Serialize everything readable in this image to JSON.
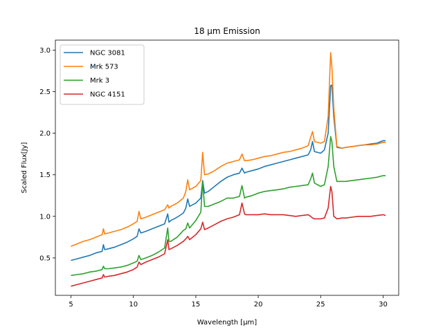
{
  "chart_data": {
    "type": "line",
    "title": "18 μm Emission",
    "xlabel": "Wavelength [μm]",
    "ylabel": "Scaled Flux[Jy]",
    "xlim": [
      3.75,
      31.25
    ],
    "ylim": [
      0.05,
      3.12
    ],
    "xticks": [
      5,
      10,
      15,
      20,
      25,
      30
    ],
    "yticks": [
      0.5,
      1.0,
      1.5,
      2.0,
      2.5,
      3.0
    ],
    "ytick_labels": [
      "0.5",
      "1.0",
      "1.5",
      "2.0",
      "2.5",
      "3.0"
    ],
    "grid": false,
    "legend_position": "top-left",
    "series": [
      {
        "name": "NGC 3081",
        "color": "#1f77b4",
        "x": [
          5.0,
          5.5,
          6.0,
          6.5,
          7.0,
          7.5,
          7.6,
          7.7,
          8.0,
          8.5,
          9.0,
          9.5,
          10.0,
          10.3,
          10.45,
          10.6,
          11.0,
          11.5,
          12.0,
          12.5,
          12.75,
          12.85,
          13.0,
          13.5,
          14.0,
          14.2,
          14.35,
          14.5,
          15.0,
          15.4,
          15.55,
          15.7,
          16.0,
          16.5,
          17.0,
          17.5,
          18.0,
          18.5,
          18.7,
          18.9,
          19.0,
          19.5,
          20.0,
          20.5,
          21.0,
          21.5,
          22.0,
          22.5,
          23.0,
          23.5,
          24.0,
          24.2,
          24.35,
          24.5,
          25.0,
          25.3,
          25.6,
          25.8,
          25.9,
          26.05,
          26.3,
          26.7,
          27.0,
          27.5,
          28.0,
          28.5,
          29.0,
          29.5,
          30.0,
          30.2
        ],
        "y": [
          0.47,
          0.49,
          0.51,
          0.53,
          0.56,
          0.58,
          0.66,
          0.6,
          0.61,
          0.63,
          0.66,
          0.69,
          0.73,
          0.76,
          0.85,
          0.8,
          0.82,
          0.85,
          0.88,
          0.91,
          1.03,
          0.93,
          0.95,
          0.99,
          1.04,
          1.1,
          1.21,
          1.12,
          1.16,
          1.22,
          1.43,
          1.28,
          1.3,
          1.36,
          1.42,
          1.47,
          1.5,
          1.52,
          1.58,
          1.52,
          1.53,
          1.55,
          1.57,
          1.6,
          1.62,
          1.64,
          1.66,
          1.68,
          1.7,
          1.72,
          1.74,
          1.8,
          1.9,
          1.78,
          1.76,
          1.8,
          2.0,
          2.57,
          2.58,
          2.2,
          1.83,
          1.82,
          1.83,
          1.84,
          1.85,
          1.86,
          1.87,
          1.88,
          1.91,
          1.91
        ]
      },
      {
        "name": "Mrk 573",
        "color": "#ff7f0e",
        "x": [
          5.0,
          5.5,
          6.0,
          6.5,
          7.0,
          7.5,
          7.6,
          7.7,
          8.0,
          8.5,
          9.0,
          9.5,
          10.0,
          10.3,
          10.45,
          10.6,
          11.0,
          11.5,
          12.0,
          12.5,
          12.75,
          12.85,
          13.0,
          13.5,
          14.0,
          14.2,
          14.35,
          14.5,
          15.0,
          15.4,
          15.55,
          15.7,
          16.0,
          16.5,
          17.0,
          17.5,
          18.0,
          18.5,
          18.7,
          18.9,
          19.0,
          19.5,
          20.0,
          20.5,
          21.0,
          21.5,
          22.0,
          22.5,
          23.0,
          23.5,
          24.0,
          24.2,
          24.35,
          24.5,
          25.0,
          25.3,
          25.6,
          25.8,
          25.9,
          26.05,
          26.3,
          26.7,
          27.0,
          27.5,
          28.0,
          28.5,
          29.0,
          29.5,
          30.0,
          30.2
        ],
        "y": [
          0.64,
          0.67,
          0.7,
          0.72,
          0.75,
          0.78,
          0.85,
          0.79,
          0.8,
          0.82,
          0.84,
          0.87,
          0.91,
          0.94,
          1.06,
          0.97,
          0.99,
          1.02,
          1.05,
          1.08,
          1.14,
          1.1,
          1.12,
          1.16,
          1.22,
          1.3,
          1.44,
          1.32,
          1.36,
          1.43,
          1.77,
          1.5,
          1.51,
          1.55,
          1.6,
          1.64,
          1.66,
          1.68,
          1.75,
          1.67,
          1.67,
          1.68,
          1.7,
          1.72,
          1.73,
          1.75,
          1.77,
          1.78,
          1.8,
          1.82,
          1.85,
          1.95,
          2.02,
          1.9,
          1.88,
          1.9,
          2.2,
          2.97,
          2.8,
          2.3,
          1.84,
          1.82,
          1.83,
          1.84,
          1.85,
          1.86,
          1.86,
          1.87,
          1.89,
          1.89
        ]
      },
      {
        "name": "Mrk 3",
        "color": "#2ca02c",
        "x": [
          5.0,
          5.5,
          6.0,
          6.5,
          7.0,
          7.5,
          7.6,
          7.7,
          8.0,
          8.5,
          9.0,
          9.5,
          10.0,
          10.3,
          10.45,
          10.6,
          11.0,
          11.5,
          12.0,
          12.5,
          12.75,
          12.85,
          13.0,
          13.5,
          14.0,
          14.2,
          14.35,
          14.5,
          15.0,
          15.4,
          15.55,
          15.7,
          16.0,
          16.5,
          17.0,
          17.5,
          18.0,
          18.5,
          18.7,
          18.9,
          19.0,
          19.5,
          20.0,
          20.5,
          21.0,
          21.5,
          22.0,
          22.5,
          23.0,
          23.5,
          24.0,
          24.2,
          24.35,
          24.5,
          25.0,
          25.3,
          25.6,
          25.8,
          25.9,
          26.05,
          26.3,
          26.7,
          27.0,
          27.5,
          28.0,
          28.5,
          29.0,
          29.5,
          30.0,
          30.2
        ],
        "y": [
          0.29,
          0.3,
          0.31,
          0.33,
          0.34,
          0.36,
          0.4,
          0.37,
          0.37,
          0.38,
          0.39,
          0.41,
          0.44,
          0.46,
          0.53,
          0.48,
          0.5,
          0.53,
          0.57,
          0.62,
          0.86,
          0.7,
          0.7,
          0.75,
          0.83,
          0.85,
          0.92,
          0.86,
          0.95,
          1.05,
          1.42,
          1.12,
          1.12,
          1.15,
          1.18,
          1.22,
          1.22,
          1.24,
          1.37,
          1.22,
          1.23,
          1.25,
          1.28,
          1.3,
          1.31,
          1.32,
          1.33,
          1.35,
          1.36,
          1.37,
          1.38,
          1.45,
          1.52,
          1.4,
          1.36,
          1.38,
          1.6,
          1.96,
          1.9,
          1.6,
          1.42,
          1.42,
          1.42,
          1.43,
          1.44,
          1.45,
          1.46,
          1.47,
          1.49,
          1.49
        ]
      },
      {
        "name": "NGC 4151",
        "color": "#d62728",
        "x": [
          5.0,
          5.5,
          6.0,
          6.5,
          7.0,
          7.5,
          7.6,
          7.7,
          8.0,
          8.5,
          9.0,
          9.5,
          10.0,
          10.3,
          10.45,
          10.6,
          11.0,
          11.5,
          12.0,
          12.5,
          12.75,
          12.85,
          13.0,
          13.5,
          14.0,
          14.2,
          14.35,
          14.5,
          15.0,
          15.4,
          15.55,
          15.7,
          16.0,
          16.5,
          17.0,
          17.5,
          18.0,
          18.5,
          18.7,
          18.9,
          19.0,
          19.5,
          20.0,
          20.5,
          21.0,
          21.5,
          22.0,
          22.5,
          23.0,
          23.5,
          24.0,
          24.2,
          24.35,
          24.5,
          25.0,
          25.3,
          25.6,
          25.8,
          25.9,
          26.05,
          26.3,
          26.7,
          27.0,
          27.5,
          28.0,
          28.5,
          29.0,
          29.5,
          30.0,
          30.2
        ],
        "y": [
          0.16,
          0.18,
          0.2,
          0.22,
          0.24,
          0.26,
          0.3,
          0.27,
          0.28,
          0.29,
          0.31,
          0.33,
          0.36,
          0.39,
          0.45,
          0.42,
          0.45,
          0.48,
          0.51,
          0.55,
          0.72,
          0.6,
          0.61,
          0.65,
          0.7,
          0.73,
          0.76,
          0.72,
          0.78,
          0.85,
          0.93,
          0.84,
          0.86,
          0.9,
          0.94,
          0.97,
          0.99,
          1.02,
          1.16,
          1.03,
          1.02,
          1.02,
          1.02,
          1.03,
          1.02,
          1.02,
          1.02,
          1.01,
          1.0,
          1.01,
          1.02,
          1.0,
          0.98,
          0.97,
          0.97,
          0.98,
          1.1,
          1.36,
          1.3,
          1.0,
          0.97,
          0.98,
          0.98,
          0.99,
          1.0,
          1.0,
          1.0,
          1.01,
          1.02,
          1.01
        ]
      }
    ]
  }
}
